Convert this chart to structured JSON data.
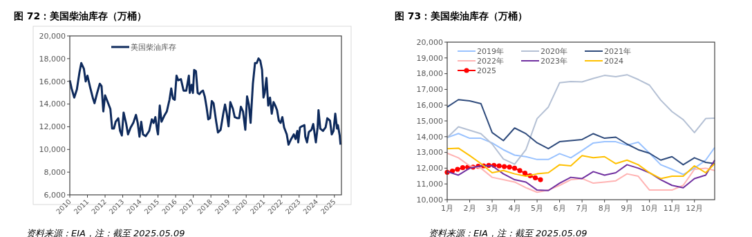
{
  "chart_data": [
    {
      "type": "line",
      "title": "图 72：美国柴油库存（万桶）",
      "annotations": [
        "资料来源：EIA，注：截至 2025.05.09"
      ],
      "legend": "top left",
      "xlim": [
        2010,
        2025.4
      ],
      "xticks": [
        2010,
        2011,
        2012,
        2013,
        2014,
        2015,
        2016,
        2017,
        2018,
        2019,
        2020,
        2021,
        2022,
        2023,
        2024,
        2025
      ],
      "ylim": [
        6000,
        20000
      ],
      "yticks": [
        {
          "value": 6000,
          "label": "6,000"
        },
        {
          "value": 8000,
          "label": "8,000"
        },
        {
          "value": 10000,
          "label": "10,000"
        },
        {
          "value": 12000,
          "label": "12,000"
        },
        {
          "value": 14000,
          "label": "14,000"
        },
        {
          "value": 16000,
          "label": "16,000"
        },
        {
          "value": 18000,
          "label": "18,000"
        },
        {
          "value": 20000,
          "label": "20,000"
        }
      ],
      "x": [
        2010.0,
        2010.1,
        2010.25,
        2010.4,
        2010.55,
        2010.65,
        2010.8,
        2010.9,
        2011.0,
        2011.15,
        2011.3,
        2011.4,
        2011.55,
        2011.7,
        2011.8,
        2011.9,
        2012.0,
        2012.15,
        2012.3,
        2012.4,
        2012.5,
        2012.6,
        2012.75,
        2012.85,
        2012.95,
        2013.05,
        2013.2,
        2013.3,
        2013.45,
        2013.6,
        2013.75,
        2013.85,
        2013.95,
        2014.05,
        2014.15,
        2014.3,
        2014.5,
        2014.65,
        2014.75,
        2014.85,
        2014.95,
        2015.0,
        2015.1,
        2015.2,
        2015.35,
        2015.5,
        2015.65,
        2015.75,
        2015.85,
        2015.95,
        2016.05,
        2016.15,
        2016.3,
        2016.45,
        2016.6,
        2016.75,
        2016.8,
        2016.9,
        2016.98,
        2017.05,
        2017.15,
        2017.25,
        2017.35,
        2017.45,
        2017.55,
        2017.65,
        2017.75,
        2017.85,
        2017.95,
        2018.05,
        2018.15,
        2018.3,
        2018.4,
        2018.55,
        2018.7,
        2018.8,
        2018.9,
        2019.0,
        2019.1,
        2019.25,
        2019.35,
        2019.5,
        2019.6,
        2019.7,
        2019.82,
        2019.95,
        2020.05,
        2020.15,
        2020.25,
        2020.38,
        2020.5,
        2020.6,
        2020.7,
        2020.8,
        2020.9,
        2020.98,
        2021.05,
        2021.15,
        2021.25,
        2021.35,
        2021.45,
        2021.55,
        2021.65,
        2021.75,
        2021.85,
        2021.95,
        2022.05,
        2022.15,
        2022.3,
        2022.4,
        2022.55,
        2022.7,
        2022.8,
        2022.9,
        2022.95,
        2023.05,
        2023.15,
        2023.3,
        2023.35,
        2023.45,
        2023.55,
        2023.7,
        2023.8,
        2023.95,
        2024.05,
        2024.1,
        2024.2,
        2024.35,
        2024.5,
        2024.6,
        2024.75,
        2024.85,
        2024.95,
        2025.05,
        2025.15,
        2025.2,
        2025.3,
        2025.35
      ],
      "series": [
        {
          "name": "美国柴油库存",
          "color": "#0e2a5c",
          "values": [
            16090,
            15380,
            14570,
            15280,
            16800,
            17610,
            17100,
            15990,
            16500,
            15490,
            14570,
            14070,
            14980,
            15790,
            15580,
            13350,
            14770,
            14170,
            13560,
            11840,
            11840,
            12440,
            12750,
            11630,
            11230,
            13250,
            12240,
            11330,
            11940,
            12340,
            13050,
            12340,
            11130,
            12440,
            11330,
            11170,
            11630,
            12650,
            12340,
            12850,
            11730,
            11330,
            13860,
            12440,
            12950,
            13350,
            14370,
            15380,
            14470,
            14370,
            16500,
            16090,
            16190,
            15180,
            15180,
            16500,
            14980,
            15690,
            14980,
            17000,
            16900,
            14980,
            14880,
            15080,
            15180,
            14670,
            13760,
            12650,
            12750,
            14270,
            14070,
            12440,
            11490,
            11730,
            13150,
            13960,
            13150,
            12040,
            14170,
            13560,
            12850,
            12750,
            12750,
            13760,
            13350,
            11730,
            14670,
            13960,
            12340,
            15790,
            17610,
            17610,
            18020,
            17810,
            17000,
            14570,
            14980,
            16300,
            13860,
            14570,
            13150,
            14170,
            13860,
            13460,
            12540,
            12340,
            12850,
            11940,
            11330,
            10420,
            10920,
            11330,
            10920,
            11630,
            10620,
            11940,
            12040,
            12140,
            11130,
            10620,
            11530,
            11730,
            12240,
            10620,
            11940,
            13460,
            11840,
            11630,
            11940,
            12750,
            12540,
            11330,
            11630,
            13150,
            11840,
            12140,
            11230,
            10420
          ]
        }
      ]
    },
    {
      "type": "line",
      "title": "图 73：美国柴油库存（万桶）",
      "annotations": [
        "资料来源：EIA，注：截至 2025.05.09"
      ],
      "legend": "top left",
      "xlim": [
        1,
        12.9
      ],
      "xticks": [
        {
          "value": 1,
          "label": "1月"
        },
        {
          "value": 2,
          "label": "2月"
        },
        {
          "value": 3,
          "label": "3月"
        },
        {
          "value": 4,
          "label": "4月"
        },
        {
          "value": 5,
          "label": "5月"
        },
        {
          "value": 6,
          "label": "6月"
        },
        {
          "value": 7,
          "label": "7月"
        },
        {
          "value": 8,
          "label": "8月"
        },
        {
          "value": 9,
          "label": "9月"
        },
        {
          "value": 10,
          "label": "10月"
        },
        {
          "value": 11,
          "label": "11月"
        },
        {
          "value": 12,
          "label": "12月"
        }
      ],
      "ylim": [
        10000,
        20000
      ],
      "yticks": [
        {
          "value": 10000,
          "label": "10,000"
        },
        {
          "value": 11000,
          "label": "11,000"
        },
        {
          "value": 12000,
          "label": "12,000"
        },
        {
          "value": 13000,
          "label": "13,000"
        },
        {
          "value": 14000,
          "label": "14,000"
        },
        {
          "value": 15000,
          "label": "15,000"
        },
        {
          "value": 16000,
          "label": "16,000"
        },
        {
          "value": 17000,
          "label": "17,000"
        },
        {
          "value": 18000,
          "label": "18,000"
        },
        {
          "value": 19000,
          "label": "19,000"
        },
        {
          "value": 20000,
          "label": "20,000"
        }
      ],
      "x": [
        1,
        1.5,
        2,
        2.5,
        3,
        3.5,
        4,
        4.5,
        5,
        5.5,
        6,
        6.5,
        7,
        7.5,
        8,
        8.5,
        9,
        9.5,
        10,
        10.5,
        11,
        11.5,
        12,
        12.5,
        12.9
      ],
      "series": [
        {
          "name": "2019年",
          "color": "#99c2ff",
          "values": [
            13940,
            14200,
            13900,
            13900,
            13600,
            13170,
            12830,
            12730,
            12550,
            12550,
            12920,
            12660,
            13120,
            13600,
            13680,
            13680,
            13460,
            13650,
            12950,
            12220,
            11930,
            11600,
            12000,
            12510,
            13310
          ]
        },
        {
          "name": "2020年",
          "color": "#b4c0d4",
          "values": [
            13940,
            14630,
            14410,
            14190,
            13530,
            12580,
            12250,
            13170,
            15150,
            15880,
            17420,
            17500,
            17480,
            17700,
            17890,
            17810,
            17930,
            17630,
            17270,
            16320,
            15590,
            15080,
            14260,
            15150,
            15180
          ]
        },
        {
          "name": "2021年",
          "color": "#2f4b7c",
          "values": [
            15880,
            16350,
            16270,
            16100,
            14260,
            13750,
            14550,
            14190,
            13610,
            13240,
            13680,
            13750,
            13820,
            14190,
            13900,
            13970,
            13530,
            13170,
            12950,
            12510,
            12730,
            12220,
            12660,
            12370,
            12290
          ]
        },
        {
          "name": "2022年",
          "color": "#ffb3b3",
          "values": [
            12950,
            12660,
            12150,
            12000,
            11420,
            11270,
            11120,
            10760,
            10470,
            10610,
            10910,
            11270,
            11340,
            11050,
            11120,
            11200,
            11640,
            11490,
            10610,
            10610,
            10610,
            10910,
            11930,
            12000,
            11850
          ]
        },
        {
          "name": "2023年",
          "color": "#7030a0",
          "values": [
            11780,
            11560,
            12000,
            12150,
            12150,
            11640,
            11270,
            11120,
            10610,
            10580,
            11050,
            11420,
            11340,
            11780,
            11560,
            11710,
            12220,
            12000,
            11710,
            11270,
            10910,
            10760,
            11340,
            11560,
            12510
          ]
        },
        {
          "name": "2024",
          "color": "#ffc000",
          "values": [
            13240,
            13270,
            12800,
            12290,
            11710,
            11850,
            11640,
            11490,
            11640,
            11710,
            12220,
            12150,
            12800,
            12660,
            12730,
            12290,
            12510,
            12220,
            11710,
            11340,
            11490,
            11490,
            12150,
            11710,
            12290
          ]
        },
        {
          "name": "2025",
          "color": "#ff0000",
          "marker": "circle",
          "x": [
            1,
            1.23,
            1.46,
            1.69,
            1.92,
            2.15,
            2.38,
            2.62,
            2.85,
            3.08,
            3.31,
            3.54,
            3.77,
            4.0,
            4.23,
            4.46,
            4.69,
            4.92,
            5.15
          ],
          "values": [
            11740,
            11820,
            11930,
            12030,
            12070,
            12070,
            12120,
            12150,
            12180,
            12180,
            12150,
            12100,
            12070,
            12000,
            11850,
            11680,
            11520,
            11390,
            11270
          ]
        }
      ]
    }
  ]
}
